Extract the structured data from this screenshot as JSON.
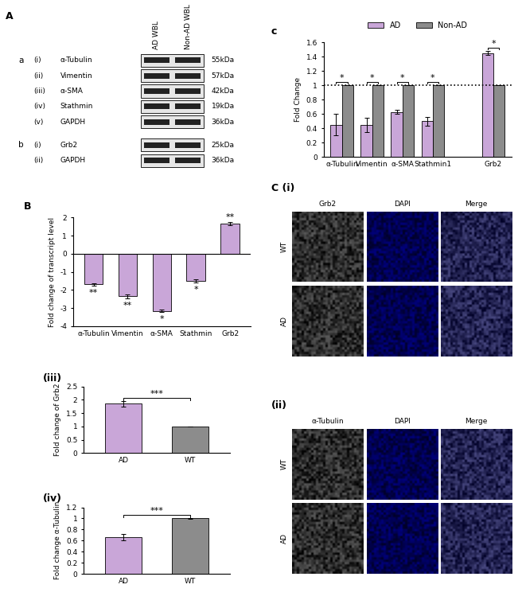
{
  "chart_data": [
    {
      "type": "bar",
      "panel": "c",
      "ylabel": "Fold Change",
      "categories": [
        "α-Tubulin",
        "Vimentin",
        "α-SMA",
        "Stathmin1",
        null,
        "Grb2"
      ],
      "series": [
        {
          "name": "AD",
          "color": "#c9a6d8",
          "values": [
            0.45,
            0.45,
            0.63,
            0.5,
            null,
            1.45
          ],
          "errors": [
            0.15,
            0.1,
            0.03,
            0.06,
            null,
            0.03
          ]
        },
        {
          "name": "Non-AD",
          "color": "#8c8c8c",
          "values": [
            1,
            1,
            1,
            1,
            null,
            1
          ],
          "errors": [
            0,
            0,
            0,
            0,
            null,
            0
          ]
        }
      ],
      "annotations": [
        "*",
        "*",
        "*",
        "*",
        null,
        "*"
      ],
      "reference_line": 1,
      "ylim": [
        0,
        1.6
      ],
      "yticks": [
        0,
        0.2,
        0.4,
        0.6,
        0.8,
        1,
        1.2,
        1.4,
        1.6
      ],
      "legend": "upper center"
    },
    {
      "type": "bar",
      "panel": "B",
      "ylabel": "Fold change of transcript level",
      "categories": [
        "α-Tubulin",
        "Vimentin",
        "α-SMA",
        "Stathmin",
        "Grb2"
      ],
      "values": [
        -1.7,
        -2.35,
        -3.15,
        -1.5,
        1.65
      ],
      "errors": [
        0.07,
        0.1,
        0.06,
        0.1,
        0.1
      ],
      "color": "#c9a6d8",
      "annotations": [
        "**",
        "**",
        "*",
        "*",
        "**"
      ],
      "ylim": [
        -4,
        2
      ],
      "yticks": [
        -4,
        -3,
        -2,
        -1,
        0,
        1,
        2
      ]
    },
    {
      "type": "bar",
      "panel": "(iii)",
      "ylabel": "Fold change of Grb2",
      "categories": [
        "AD",
        "WT"
      ],
      "values": [
        1.85,
        1.0
      ],
      "errors": [
        0.1,
        0.01
      ],
      "colors": [
        "#c9a6d8",
        "#8c8c8c"
      ],
      "significance": "***",
      "ylim": [
        0,
        2.5
      ],
      "yticks": [
        0,
        0.5,
        1,
        1.5,
        2,
        2.5
      ]
    },
    {
      "type": "bar",
      "panel": "(iv)",
      "ylabel": "Fold change α-Tubulin",
      "categories": [
        "AD",
        "WT"
      ],
      "values": [
        0.66,
        1.0
      ],
      "errors": [
        0.06,
        0.005
      ],
      "colors": [
        "#c9a6d8",
        "#8c8c8c"
      ],
      "significance": "***",
      "ylim": [
        0,
        1.2
      ],
      "yticks": [
        0,
        0.2,
        0.4,
        0.6,
        0.8,
        1,
        1.2
      ]
    }
  ],
  "western_blot": {
    "panel": "A",
    "columns": [
      "AD WBL",
      "Non-AD WBL"
    ],
    "groups": [
      {
        "label": "a",
        "rows": [
          {
            "label": "(i)",
            "protein": "α-Tubulin",
            "size": "55kDa"
          },
          {
            "label": "(ii)",
            "protein": "Vimentin",
            "size": "57kDa"
          },
          {
            "label": "(iii)",
            "protein": "α-SMA",
            "size": "42kDa"
          },
          {
            "label": "(iv)",
            "protein": "Stathmin",
            "size": "19kDa"
          },
          {
            "label": "(v)",
            "protein": "GAPDH",
            "size": "36kDa"
          }
        ]
      },
      {
        "label": "b",
        "rows": [
          {
            "label": "(i)",
            "protein": "Grb2",
            "size": "25kDa"
          },
          {
            "label": "(ii)",
            "protein": "GAPDH",
            "size": "36kDa"
          }
        ]
      }
    ]
  },
  "microscopy": [
    {
      "panel": "C (i)",
      "columns": [
        "Grb2",
        "DAPI",
        "Merge"
      ],
      "rows": [
        "WT",
        "AD"
      ]
    },
    {
      "panel": "(ii)",
      "columns": [
        "α-Tubulin",
        "DAPI",
        "Merge"
      ],
      "rows": [
        "WT",
        "AD"
      ]
    }
  ]
}
